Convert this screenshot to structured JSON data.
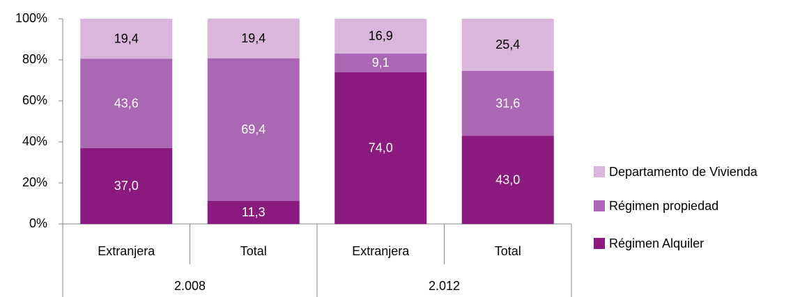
{
  "chart_data": {
    "type": "stacked_bar",
    "categories": [
      "Extranjera",
      "Total",
      "Extranjera",
      "Total"
    ],
    "groups": [
      "2.008",
      "2.012"
    ],
    "series": [
      {
        "name": "Régimen Alquiler",
        "color": "#8b1a7e",
        "label_color": "#ffffff",
        "values": [
          37.0,
          11.3,
          74.0,
          43.0
        ],
        "value_labels": [
          "37,0",
          "11,3",
          "74,0",
          "43,0"
        ]
      },
      {
        "name": "Régimen propiedad",
        "color": "#aa67b3",
        "label_color": "#ffffff",
        "values": [
          43.6,
          69.4,
          9.1,
          31.6
        ],
        "value_labels": [
          "43,6",
          "69,4",
          "9,1",
          "31,6"
        ]
      },
      {
        "name": "Departamento de Vivienda",
        "color": "#dab5dc",
        "label_color": "#000000",
        "values": [
          19.4,
          19.4,
          16.9,
          25.4
        ],
        "value_labels": [
          "19,4",
          "19,4",
          "16,9",
          "25,4"
        ]
      }
    ],
    "ylim": [
      0,
      100
    ],
    "yticks": [
      {
        "value": 0,
        "label": "0%"
      },
      {
        "value": 20,
        "label": "20%"
      },
      {
        "value": 40,
        "label": "40%"
      },
      {
        "value": 60,
        "label": "60%"
      },
      {
        "value": 80,
        "label": "80%"
      },
      {
        "value": 100,
        "label": "100%"
      }
    ],
    "legend": "right"
  }
}
